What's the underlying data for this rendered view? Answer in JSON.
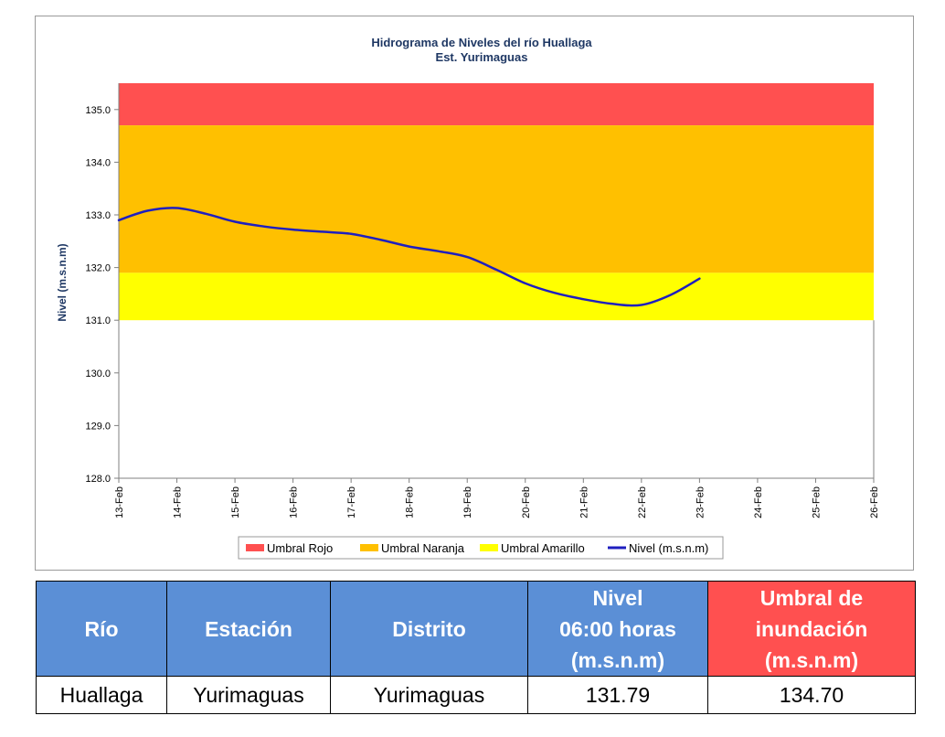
{
  "chart_data": {
    "type": "line",
    "title": "Hidrograma de Niveles del río Huallaga",
    "subtitle": "Est. Yurimaguas",
    "ylabel": "Nivel (m.s.n.m)",
    "xlabel": "",
    "ylim": [
      128.0,
      135.5
    ],
    "yticks": [
      "128.0",
      "129.0",
      "130.0",
      "131.0",
      "132.0",
      "133.0",
      "134.0",
      "135.0"
    ],
    "ytick_values": [
      128,
      129,
      130,
      131,
      132,
      133,
      134,
      135
    ],
    "categories": [
      "13-Feb",
      "14-Feb",
      "15-Feb",
      "16-Feb",
      "17-Feb",
      "18-Feb",
      "19-Feb",
      "20-Feb",
      "21-Feb",
      "22-Feb",
      "23-Feb",
      "24-Feb",
      "25-Feb",
      "26-Feb"
    ],
    "bands": [
      {
        "name": "Umbral Rojo",
        "from": 134.7,
        "to": 135.5,
        "color": "#ff5050"
      },
      {
        "name": "Umbral Naranja",
        "from": 131.9,
        "to": 134.7,
        "color": "#ffc000"
      },
      {
        "name": "Umbral Amarillo",
        "from": 131.0,
        "to": 131.9,
        "color": "#ffff00"
      }
    ],
    "series": [
      {
        "name": "Nivel (m.s.n.m)",
        "color": "#1f1fbf",
        "x": [
          0,
          0.5,
          1,
          1.5,
          2,
          2.5,
          3,
          3.5,
          4,
          4.5,
          5,
          5.5,
          6,
          6.5,
          7,
          7.5,
          8,
          8.5,
          9,
          9.5,
          10
        ],
        "values": [
          132.9,
          133.08,
          133.13,
          133.02,
          132.87,
          132.78,
          132.72,
          132.68,
          132.64,
          132.53,
          132.4,
          132.31,
          132.2,
          131.96,
          131.7,
          131.52,
          131.4,
          131.31,
          131.29,
          131.48,
          131.79
        ]
      }
    ],
    "legend": {
      "position": "bottom",
      "entries": [
        "Umbral Rojo",
        "Umbral Naranja",
        "Umbral Amarillo",
        "Nivel (m.s.n.m)"
      ]
    },
    "grid": false
  },
  "table": {
    "headers": {
      "rio": "Río",
      "estacion": "Estación",
      "distrito": "Distrito",
      "nivel_l1": "Nivel",
      "nivel_l2": "06:00 horas",
      "nivel_l3": "(m.s.n.m)",
      "umbral_l1": "Umbral de",
      "umbral_l2": "inundación",
      "umbral_l3": "(m.s.n.m)"
    },
    "row": {
      "rio": "Huallaga",
      "estacion": "Yurimaguas",
      "distrito": "Yurimaguas",
      "nivel": "131.79",
      "umbral": "134.70"
    },
    "colors": {
      "header_blue": "#5b8fd6",
      "header_red": "#ff5050"
    }
  }
}
